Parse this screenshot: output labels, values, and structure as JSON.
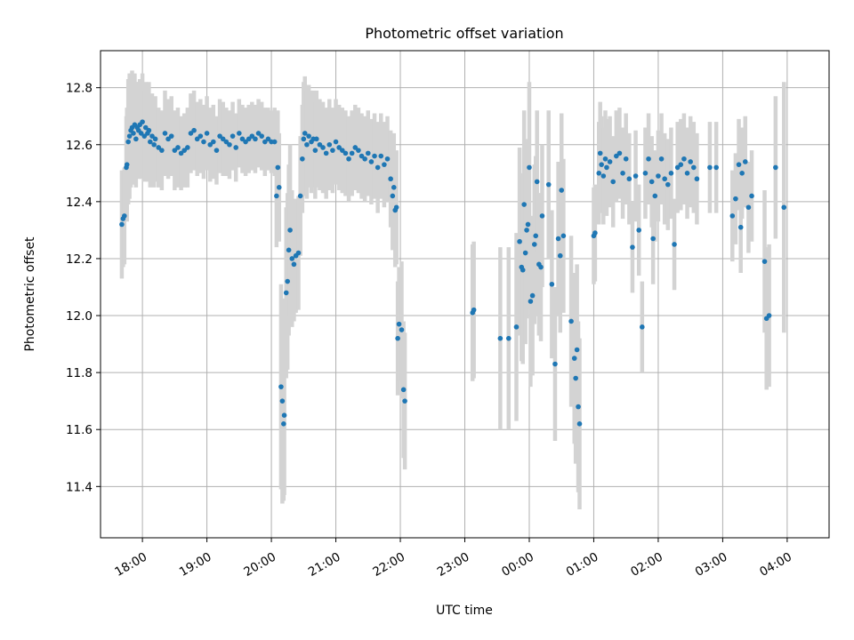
{
  "chart_data": {
    "type": "scatter",
    "title": "Photometric offset variation",
    "xlabel": "UTC time",
    "ylabel": "Photometric offset",
    "x_unit": "hours",
    "xlim": [
      17.35,
      28.65
    ],
    "ylim": [
      11.22,
      12.93
    ],
    "grid": true,
    "x_ticks": [
      {
        "value": 18,
        "label": "18:00"
      },
      {
        "value": 19,
        "label": "19:00"
      },
      {
        "value": 20,
        "label": "20:00"
      },
      {
        "value": 21,
        "label": "21:00"
      },
      {
        "value": 22,
        "label": "22:00"
      },
      {
        "value": 23,
        "label": "23:00"
      },
      {
        "value": 24,
        "label": "00:00"
      },
      {
        "value": 25,
        "label": "01:00"
      },
      {
        "value": 26,
        "label": "02:00"
      },
      {
        "value": 27,
        "label": "03:00"
      },
      {
        "value": 28,
        "label": "04:00"
      }
    ],
    "y_ticks": [
      {
        "value": 11.4,
        "label": "11.4"
      },
      {
        "value": 11.6,
        "label": "11.6"
      },
      {
        "value": 11.8,
        "label": "11.8"
      },
      {
        "value": 12.0,
        "label": "12.0"
      },
      {
        "value": 12.2,
        "label": "12.2"
      },
      {
        "value": 12.4,
        "label": "12.4"
      },
      {
        "value": 12.6,
        "label": "12.6"
      },
      {
        "value": 12.8,
        "label": "12.8"
      }
    ],
    "colors": {
      "point": "#1f77b4",
      "errorbar": "#d3d3d3",
      "grid": "#b0b0b0"
    },
    "series": [
      {
        "points": [
          [
            17.68,
            12.32,
            0.19
          ],
          [
            17.7,
            12.34,
            0.17
          ],
          [
            17.72,
            12.35,
            0.17
          ],
          [
            17.75,
            12.52,
            0.18
          ],
          [
            17.76,
            12.53,
            0.2
          ],
          [
            17.78,
            12.61,
            0.22
          ],
          [
            17.8,
            12.63,
            0.22
          ],
          [
            17.82,
            12.65,
            0.2
          ],
          [
            17.84,
            12.66,
            0.2
          ],
          [
            17.86,
            12.64,
            0.18
          ],
          [
            17.88,
            12.67,
            0.18
          ],
          [
            17.9,
            12.62,
            0.17
          ],
          [
            17.92,
            12.66,
            0.16
          ],
          [
            17.94,
            12.65,
            0.17
          ],
          [
            17.96,
            12.67,
            0.16
          ],
          [
            17.98,
            12.64,
            0.16
          ],
          [
            18.0,
            12.68,
            0.17
          ],
          [
            18.03,
            12.63,
            0.16
          ],
          [
            18.05,
            12.66,
            0.16
          ],
          [
            18.08,
            12.64,
            0.17
          ],
          [
            18.1,
            12.65,
            0.17
          ],
          [
            18.12,
            12.61,
            0.16
          ],
          [
            18.15,
            12.63,
            0.15
          ],
          [
            18.18,
            12.6,
            0.15
          ],
          [
            18.2,
            12.62,
            0.15
          ],
          [
            18.25,
            12.59,
            0.14
          ],
          [
            18.3,
            12.58,
            0.14
          ],
          [
            18.35,
            12.64,
            0.15
          ],
          [
            18.4,
            12.62,
            0.14
          ],
          [
            18.45,
            12.63,
            0.14
          ],
          [
            18.5,
            12.58,
            0.14
          ],
          [
            18.55,
            12.59,
            0.14
          ],
          [
            18.6,
            12.57,
            0.13
          ],
          [
            18.65,
            12.58,
            0.13
          ],
          [
            18.7,
            12.59,
            0.14
          ],
          [
            18.75,
            12.64,
            0.14
          ],
          [
            18.8,
            12.65,
            0.14
          ],
          [
            18.85,
            12.62,
            0.13
          ],
          [
            18.9,
            12.63,
            0.13
          ],
          [
            18.95,
            12.61,
            0.13
          ],
          [
            19.0,
            12.64,
            0.13
          ],
          [
            19.05,
            12.6,
            0.13
          ],
          [
            19.1,
            12.61,
            0.13
          ],
          [
            19.15,
            12.58,
            0.12
          ],
          [
            19.2,
            12.63,
            0.13
          ],
          [
            19.25,
            12.62,
            0.13
          ],
          [
            19.3,
            12.61,
            0.12
          ],
          [
            19.35,
            12.6,
            0.12
          ],
          [
            19.4,
            12.63,
            0.12
          ],
          [
            19.45,
            12.59,
            0.12
          ],
          [
            19.5,
            12.64,
            0.12
          ],
          [
            19.55,
            12.62,
            0.12
          ],
          [
            19.6,
            12.61,
            0.12
          ],
          [
            19.65,
            12.62,
            0.12
          ],
          [
            19.7,
            12.63,
            0.12
          ],
          [
            19.75,
            12.62,
            0.12
          ],
          [
            19.8,
            12.64,
            0.12
          ],
          [
            19.85,
            12.63,
            0.12
          ],
          [
            19.9,
            12.61,
            0.12
          ],
          [
            19.95,
            12.62,
            0.11
          ],
          [
            20.0,
            12.61,
            0.11
          ],
          [
            20.05,
            12.61,
            0.12
          ],
          [
            20.08,
            12.42,
            0.18
          ],
          [
            20.1,
            12.52,
            0.2
          ],
          [
            20.12,
            12.45,
            0.19
          ],
          [
            20.15,
            11.75,
            0.36
          ],
          [
            20.17,
            11.7,
            0.36
          ],
          [
            20.19,
            11.62,
            0.27
          ],
          [
            20.2,
            11.65,
            0.28
          ],
          [
            20.23,
            12.08,
            0.3
          ],
          [
            20.25,
            12.12,
            0.31
          ],
          [
            20.27,
            12.23,
            0.3
          ],
          [
            20.29,
            12.3,
            0.3
          ],
          [
            20.32,
            12.2,
            0.24
          ],
          [
            20.35,
            12.18,
            0.2
          ],
          [
            20.38,
            12.21,
            0.2
          ],
          [
            20.42,
            12.22,
            0.2
          ],
          [
            20.45,
            12.42,
            0.21
          ],
          [
            20.48,
            12.55,
            0.19
          ],
          [
            20.5,
            12.62,
            0.2
          ],
          [
            20.52,
            12.64,
            0.2
          ],
          [
            20.55,
            12.6,
            0.19
          ],
          [
            20.58,
            12.63,
            0.18
          ],
          [
            20.62,
            12.61,
            0.18
          ],
          [
            20.65,
            12.62,
            0.17
          ],
          [
            20.68,
            12.58,
            0.17
          ],
          [
            20.7,
            12.62,
            0.17
          ],
          [
            20.75,
            12.6,
            0.16
          ],
          [
            20.8,
            12.59,
            0.16
          ],
          [
            20.85,
            12.57,
            0.16
          ],
          [
            20.9,
            12.6,
            0.16
          ],
          [
            20.95,
            12.58,
            0.15
          ],
          [
            21.0,
            12.61,
            0.15
          ],
          [
            21.05,
            12.59,
            0.15
          ],
          [
            21.1,
            12.58,
            0.15
          ],
          [
            21.15,
            12.57,
            0.15
          ],
          [
            21.2,
            12.55,
            0.15
          ],
          [
            21.25,
            12.57,
            0.15
          ],
          [
            21.3,
            12.59,
            0.15
          ],
          [
            21.35,
            12.58,
            0.15
          ],
          [
            21.4,
            12.56,
            0.15
          ],
          [
            21.45,
            12.55,
            0.15
          ],
          [
            21.5,
            12.57,
            0.15
          ],
          [
            21.55,
            12.54,
            0.15
          ],
          [
            21.6,
            12.56,
            0.15
          ],
          [
            21.65,
            12.52,
            0.16
          ],
          [
            21.7,
            12.56,
            0.15
          ],
          [
            21.75,
            12.53,
            0.15
          ],
          [
            21.8,
            12.55,
            0.15
          ],
          [
            21.85,
            12.48,
            0.17
          ],
          [
            21.88,
            12.42,
            0.19
          ],
          [
            21.9,
            12.45,
            0.19
          ],
          [
            21.92,
            12.37,
            0.2
          ],
          [
            21.94,
            12.38,
            0.2
          ],
          [
            21.96,
            11.92,
            0.2
          ],
          [
            21.98,
            11.97,
            0.2
          ],
          [
            22.02,
            11.95,
            0.24
          ],
          [
            22.05,
            11.74,
            0.24
          ],
          [
            22.07,
            11.7,
            0.24
          ],
          [
            23.12,
            12.01,
            0.24
          ],
          [
            23.14,
            12.02,
            0.24
          ],
          [
            23.55,
            11.92,
            0.32
          ],
          [
            23.68,
            11.92,
            0.32
          ],
          [
            23.8,
            11.96,
            0.33
          ],
          [
            23.85,
            12.26,
            0.33
          ],
          [
            23.88,
            12.17,
            0.33
          ],
          [
            23.9,
            12.16,
            0.33
          ],
          [
            23.92,
            12.39,
            0.33
          ],
          [
            23.94,
            12.22,
            0.32
          ],
          [
            23.96,
            12.3,
            0.31
          ],
          [
            23.98,
            12.32,
            0.3
          ],
          [
            24.0,
            12.52,
            0.3
          ],
          [
            24.02,
            12.05,
            0.3
          ],
          [
            24.05,
            12.07,
            0.28
          ],
          [
            24.08,
            12.25,
            0.28
          ],
          [
            24.1,
            12.28,
            0.28
          ],
          [
            24.12,
            12.47,
            0.25
          ],
          [
            24.15,
            12.18,
            0.25
          ],
          [
            24.18,
            12.17,
            0.26
          ],
          [
            24.2,
            12.35,
            0.25
          ],
          [
            24.3,
            12.46,
            0.26
          ],
          [
            24.35,
            12.11,
            0.26
          ],
          [
            24.4,
            11.83,
            0.27
          ],
          [
            24.45,
            12.27,
            0.27
          ],
          [
            24.48,
            12.21,
            0.27
          ],
          [
            24.5,
            12.44,
            0.27
          ],
          [
            24.53,
            12.28,
            0.27
          ],
          [
            24.65,
            11.98,
            0.3
          ],
          [
            24.7,
            11.85,
            0.3
          ],
          [
            24.72,
            11.78,
            0.3
          ],
          [
            24.74,
            11.88,
            0.3
          ],
          [
            24.76,
            11.68,
            0.3
          ],
          [
            24.78,
            11.62,
            0.3
          ],
          [
            25.0,
            12.28,
            0.17
          ],
          [
            25.02,
            12.29,
            0.17
          ],
          [
            25.08,
            12.5,
            0.18
          ],
          [
            25.1,
            12.57,
            0.18
          ],
          [
            25.12,
            12.53,
            0.17
          ],
          [
            25.15,
            12.49,
            0.17
          ],
          [
            25.18,
            12.55,
            0.17
          ],
          [
            25.2,
            12.52,
            0.17
          ],
          [
            25.25,
            12.54,
            0.16
          ],
          [
            25.3,
            12.47,
            0.16
          ],
          [
            25.35,
            12.56,
            0.16
          ],
          [
            25.4,
            12.57,
            0.16
          ],
          [
            25.45,
            12.5,
            0.16
          ],
          [
            25.5,
            12.55,
            0.16
          ],
          [
            25.55,
            12.48,
            0.16
          ],
          [
            25.6,
            12.24,
            0.16
          ],
          [
            25.65,
            12.49,
            0.16
          ],
          [
            25.7,
            12.3,
            0.16
          ],
          [
            25.75,
            11.96,
            0.16
          ],
          [
            25.8,
            12.5,
            0.16
          ],
          [
            25.85,
            12.55,
            0.16
          ],
          [
            25.9,
            12.47,
            0.16
          ],
          [
            25.92,
            12.27,
            0.16
          ],
          [
            25.95,
            12.42,
            0.16
          ],
          [
            26.0,
            12.49,
            0.16
          ],
          [
            26.05,
            12.55,
            0.16
          ],
          [
            26.1,
            12.48,
            0.16
          ],
          [
            26.15,
            12.46,
            0.16
          ],
          [
            26.2,
            12.5,
            0.16
          ],
          [
            26.25,
            12.25,
            0.16
          ],
          [
            26.3,
            12.52,
            0.16
          ],
          [
            26.35,
            12.53,
            0.16
          ],
          [
            26.4,
            12.55,
            0.16
          ],
          [
            26.45,
            12.5,
            0.16
          ],
          [
            26.5,
            12.54,
            0.16
          ],
          [
            26.55,
            12.52,
            0.16
          ],
          [
            26.6,
            12.48,
            0.16
          ],
          [
            26.8,
            12.52,
            0.16
          ],
          [
            26.9,
            12.52,
            0.16
          ],
          [
            27.15,
            12.35,
            0.16
          ],
          [
            27.2,
            12.41,
            0.16
          ],
          [
            27.25,
            12.53,
            0.16
          ],
          [
            27.28,
            12.31,
            0.16
          ],
          [
            27.3,
            12.5,
            0.16
          ],
          [
            27.35,
            12.54,
            0.16
          ],
          [
            27.4,
            12.38,
            0.16
          ],
          [
            27.45,
            12.42,
            0.16
          ],
          [
            27.65,
            12.19,
            0.25
          ],
          [
            27.68,
            11.99,
            0.25
          ],
          [
            27.72,
            12.0,
            0.25
          ],
          [
            27.82,
            12.52,
            0.25
          ],
          [
            27.95,
            12.38,
            0.44
          ]
        ]
      }
    ]
  }
}
